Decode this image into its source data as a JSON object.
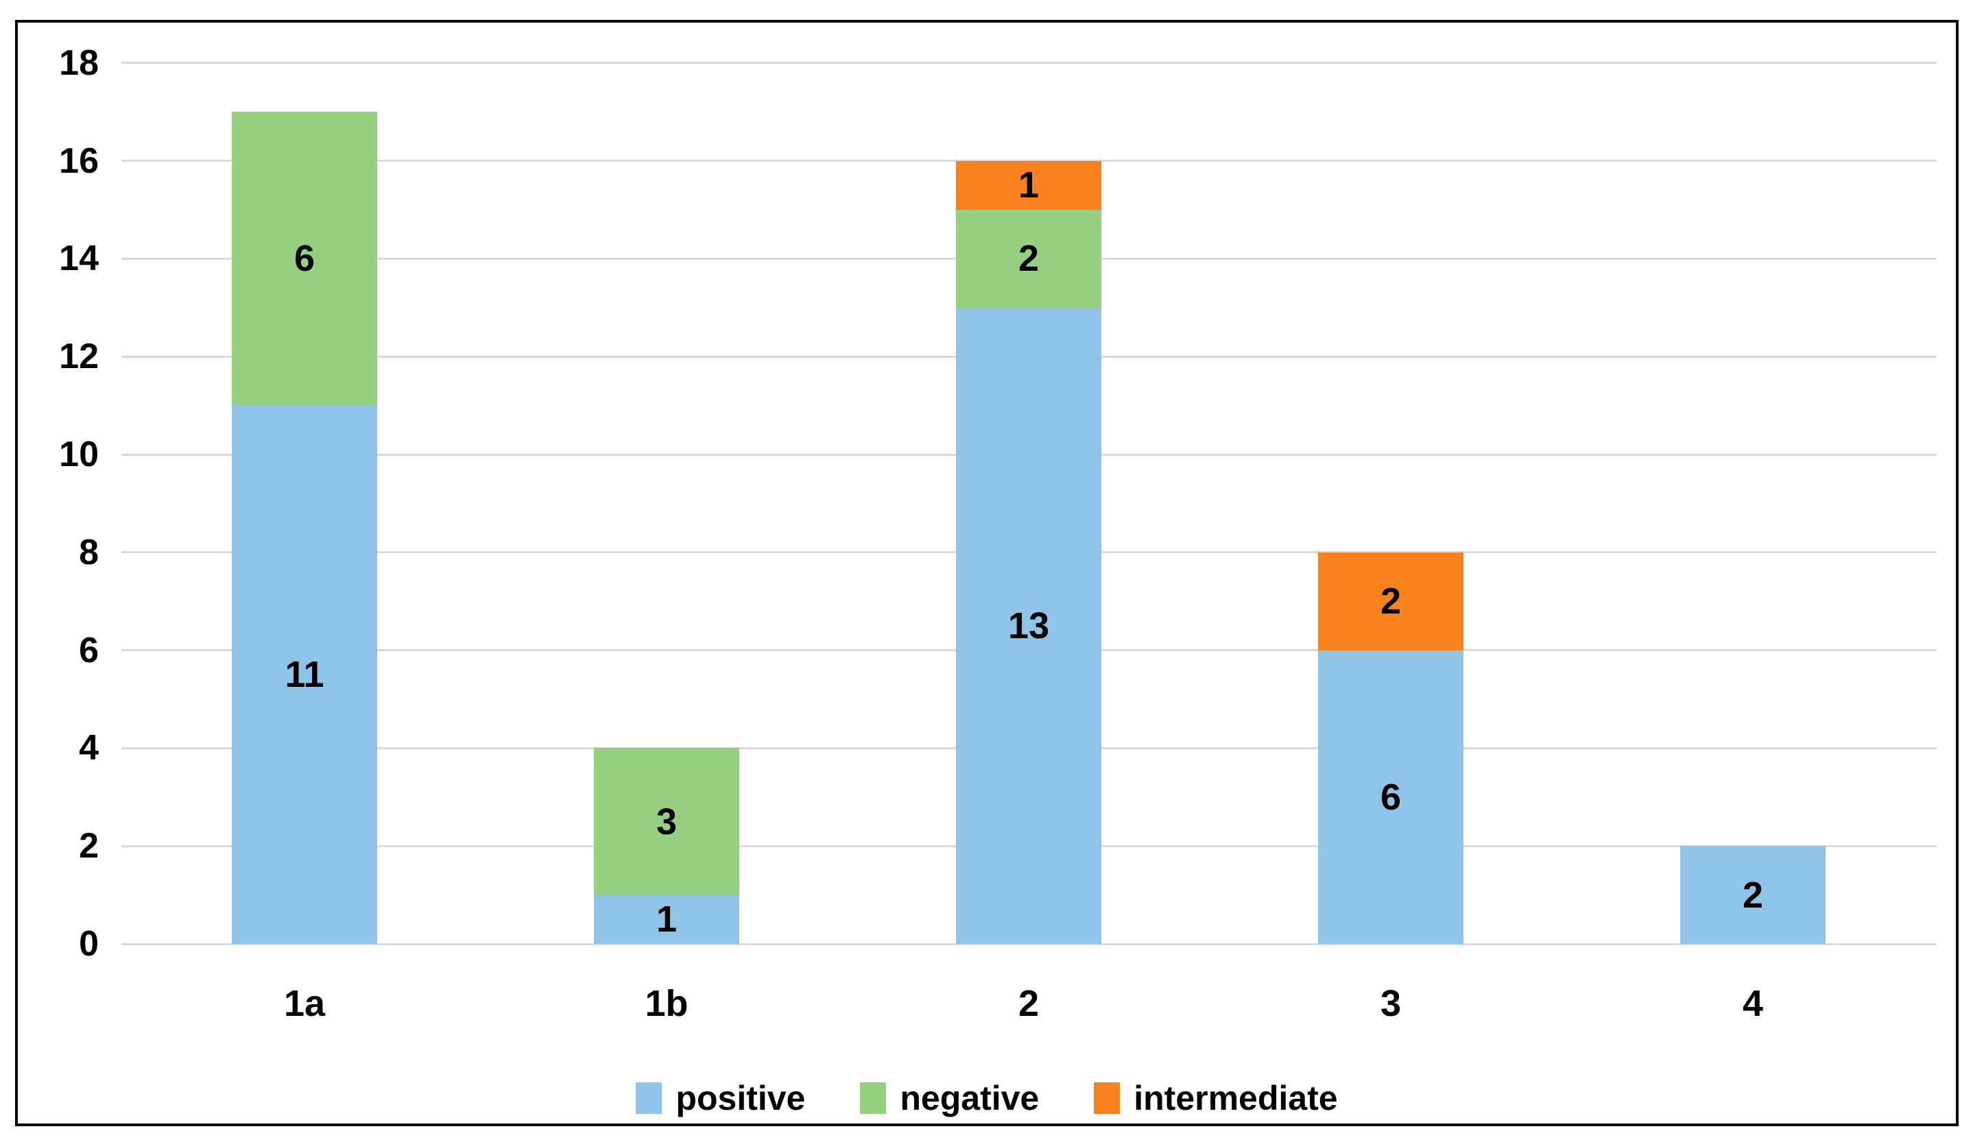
{
  "chart_data": {
    "type": "bar",
    "stacked": true,
    "title": "",
    "xlabel": "",
    "ylabel": "",
    "categories": [
      "1a",
      "1b",
      "2",
      "3",
      "4"
    ],
    "series": [
      {
        "name": "positive",
        "color": "#8FC4E8",
        "values": [
          11,
          1,
          13,
          6,
          2
        ]
      },
      {
        "name": "negative",
        "color": "#97CF81",
        "values": [
          6,
          3,
          2,
          0,
          0
        ]
      },
      {
        "name": "intermediate",
        "color": "#F8821F",
        "values": [
          0,
          0,
          1,
          2,
          0
        ]
      }
    ],
    "totals": [
      17,
      4,
      16,
      8,
      2
    ],
    "data_labels_shown": true,
    "y_ticks": [
      0,
      2,
      4,
      6,
      8,
      10,
      12,
      14,
      16,
      18
    ],
    "ylim": [
      0,
      18
    ],
    "grid": true,
    "gridline_color": "#D9D9D9",
    "frame_border_color": "#000000",
    "background_color": "#FFFFFF",
    "legend_position": "bottom-center",
    "legend_entries": [
      "positive",
      "negative",
      "intermediate"
    ]
  }
}
